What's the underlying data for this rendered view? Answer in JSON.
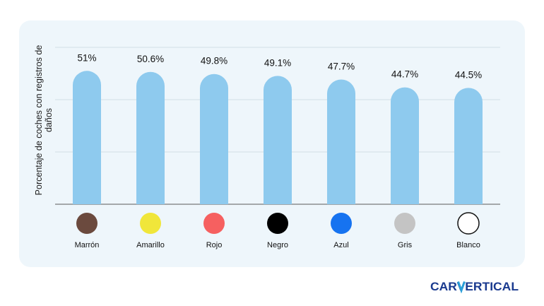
{
  "chart_data": {
    "type": "bar",
    "categories": [
      "Marrón",
      "Amarillo",
      "Rojo",
      "Negro",
      "Azul",
      "Gris",
      "Blanco"
    ],
    "values": [
      51,
      50.6,
      49.8,
      49.1,
      47.7,
      44.7,
      44.5
    ],
    "value_labels": [
      "51%",
      "50.6%",
      "49.8%",
      "49.1%",
      "47.7%",
      "44.7%",
      "44.5%"
    ],
    "category_colors": [
      "#6b4a3e",
      "#f0e63a",
      "#f66060",
      "#000000",
      "#1673f0",
      "#c4c4c4",
      "#ffffff"
    ],
    "bar_color": "#8ecaee",
    "ylabel": "Porcentaje de coches con registros de daños",
    "xlabel": "",
    "ylim": [
      0,
      60
    ],
    "grid": true
  },
  "brand": {
    "logo_text": "carVertical",
    "colors": {
      "dark": "#1a3a8f",
      "accent": "#2a9fd8"
    }
  }
}
